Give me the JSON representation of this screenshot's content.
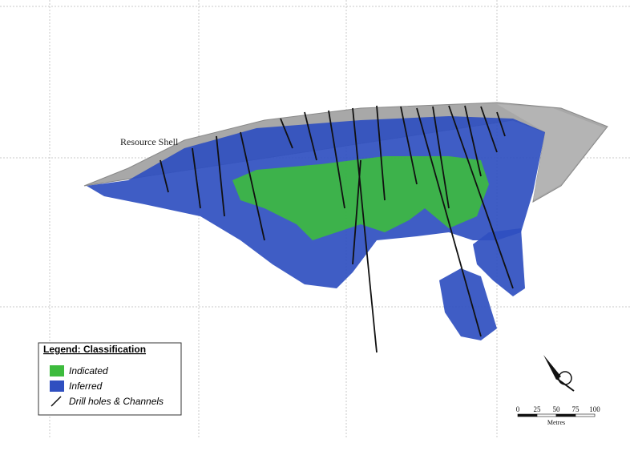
{
  "annotation": "Resource Shell",
  "legend": {
    "title": "Legend: Classification",
    "items": [
      {
        "label": "Indicated",
        "color": "#3dbb3d"
      },
      {
        "label": "Inferred",
        "color": "#2f4fc0"
      },
      {
        "label": "Drill holes & Channels",
        "color": "#111111"
      }
    ]
  },
  "scale_bar": {
    "ticks": [
      0,
      25,
      50,
      75,
      100
    ],
    "unit": "Metres"
  }
}
